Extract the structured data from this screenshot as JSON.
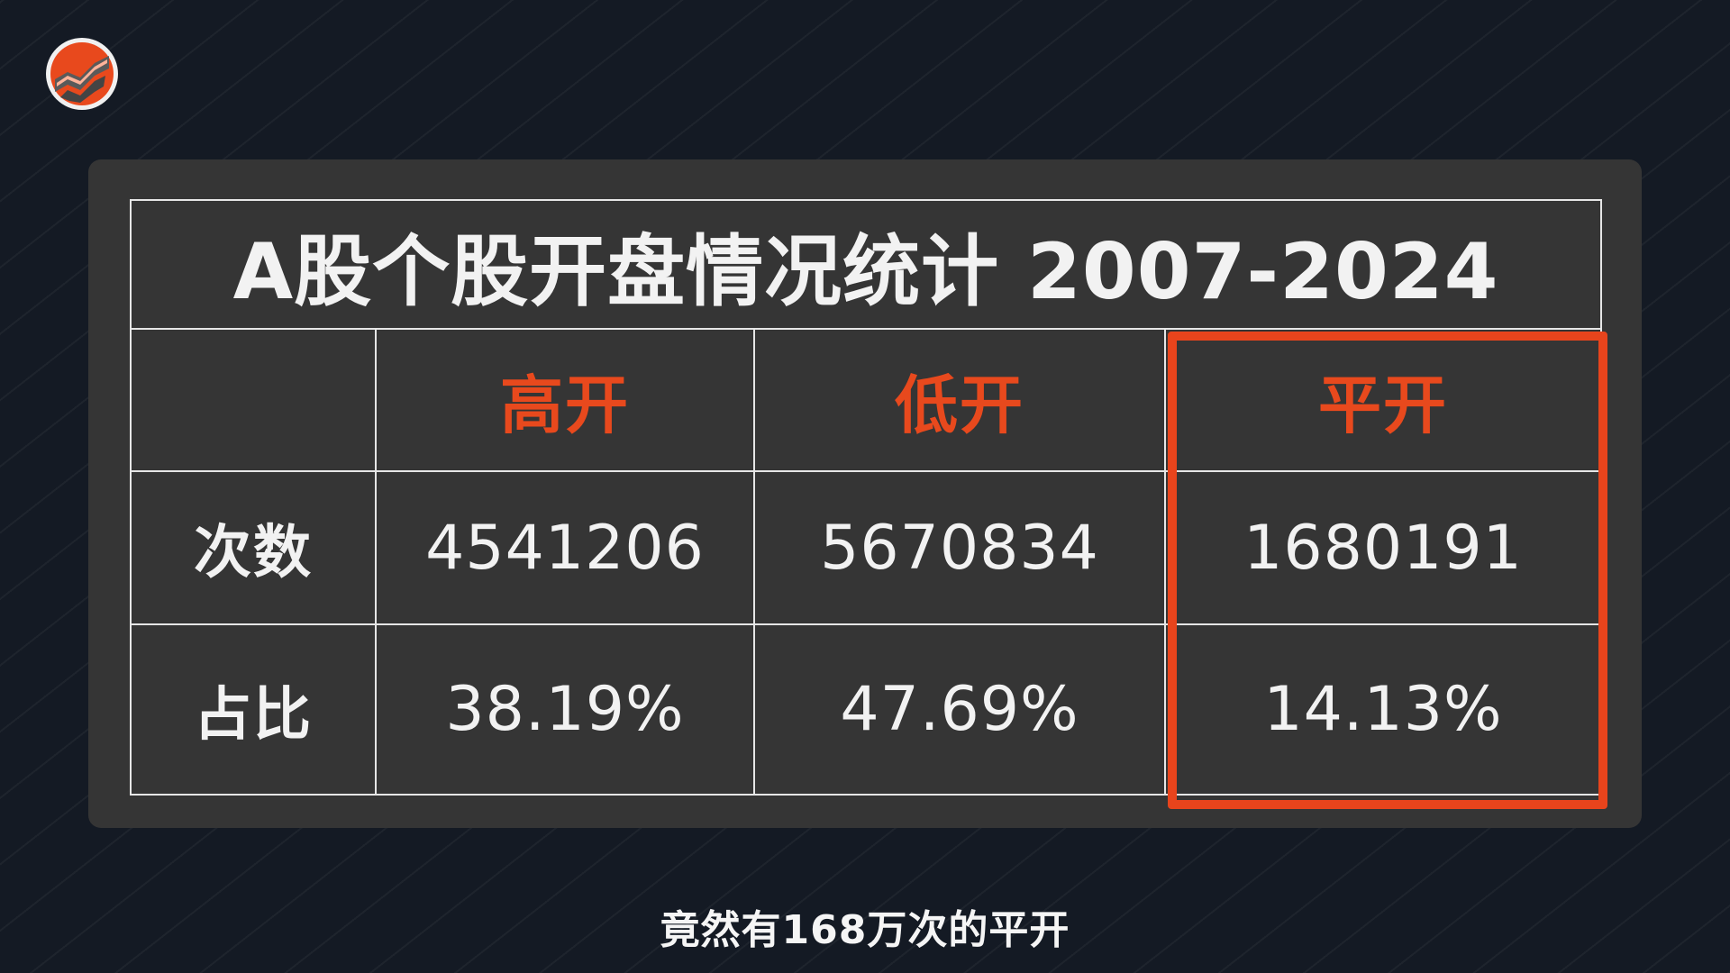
{
  "colors": {
    "background": "#141a24",
    "card": "#353535",
    "accent": "#e8491d",
    "grid": "#e6e6e6",
    "text": "#f2f2f2"
  },
  "logo": {
    "icon": "chart-logo-icon"
  },
  "table": {
    "title": "A股个股开盘情况统计 2007-2024",
    "columns": [
      "高开",
      "低开",
      "平开"
    ],
    "rows": [
      {
        "label": "次数",
        "values": [
          "4541206",
          "5670834",
          "1680191"
        ]
      },
      {
        "label": "占比",
        "values": [
          "38.19%",
          "47.69%",
          "14.13%"
        ]
      }
    ],
    "highlighted_column": "平开"
  },
  "subtitle": "竟然有168万次的平开"
}
